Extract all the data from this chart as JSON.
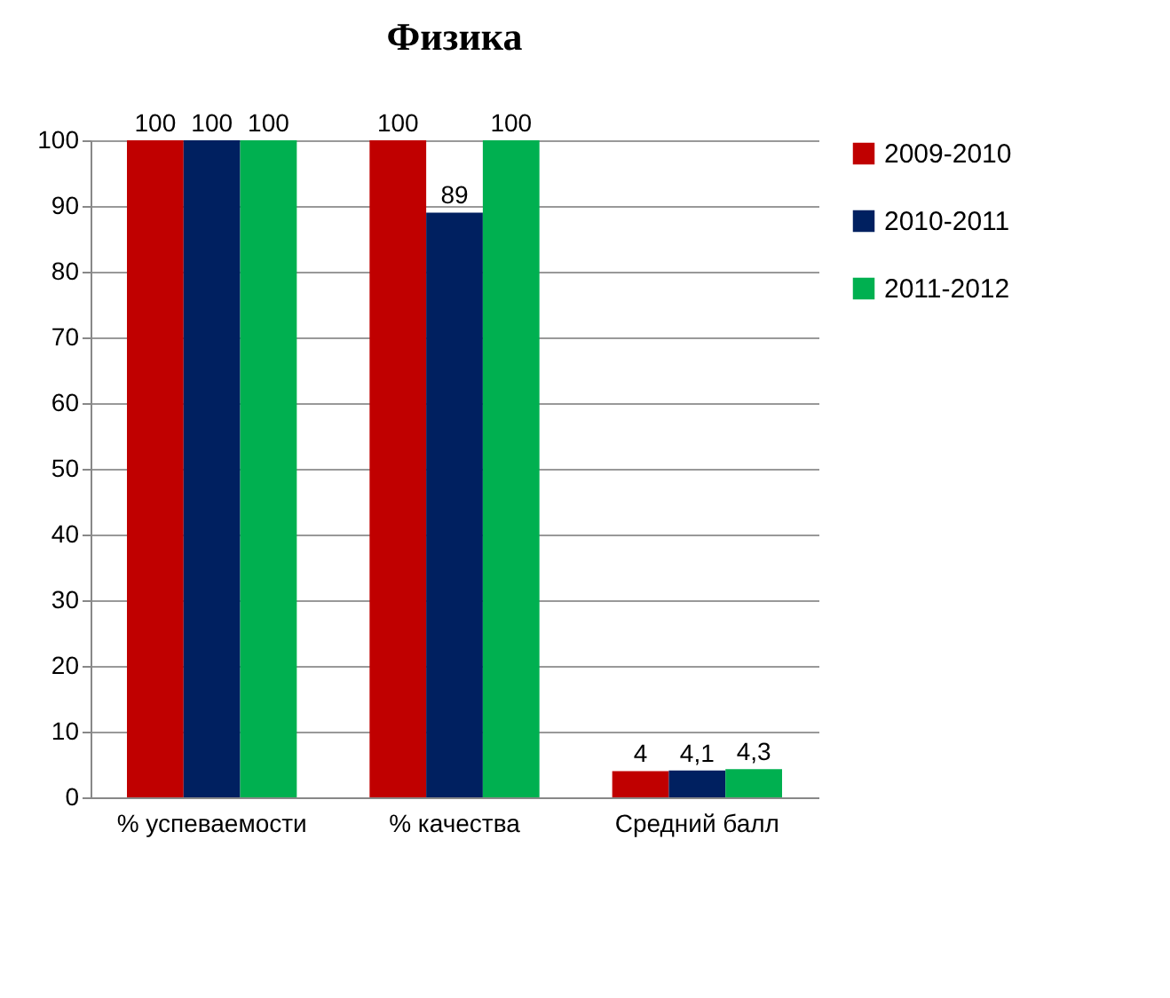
{
  "chart_data": {
    "type": "bar",
    "title": "Физика",
    "categories": [
      "% успеваемости",
      "% качества",
      "Средний балл"
    ],
    "series": [
      {
        "name": "2009-2010",
        "color": "#c00000",
        "values": [
          100,
          100,
          4
        ],
        "value_labels": [
          "100",
          "100",
          "4"
        ]
      },
      {
        "name": "2010-2011",
        "color": "#002060",
        "values": [
          100,
          89,
          4.1
        ],
        "value_labels": [
          "100",
          "89",
          "4,1"
        ]
      },
      {
        "name": "2011-2012",
        "color": "#00b050",
        "values": [
          100,
          100,
          4.3
        ],
        "value_labels": [
          "100",
          "100",
          "4,3"
        ]
      }
    ],
    "ylim": [
      0,
      100
    ],
    "yticks": [
      0,
      10,
      20,
      30,
      40,
      50,
      60,
      70,
      80,
      90,
      100
    ],
    "grid": "y",
    "legend": "right"
  }
}
